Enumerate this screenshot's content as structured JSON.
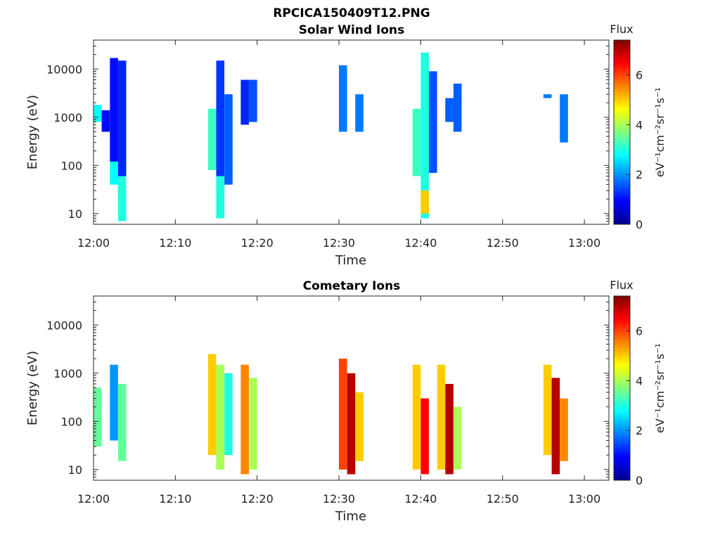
{
  "figure": {
    "filename": "RPCICA150409T12.PNG"
  },
  "colors": {
    "colormap": [
      "#00008f",
      "#0000ff",
      "#0080ff",
      "#00ffff",
      "#80ff80",
      "#ffff00",
      "#ff8000",
      "#ff0000",
      "#800000"
    ]
  },
  "chart_data": [
    {
      "type": "heatmap",
      "title": "Solar Wind Ions",
      "xlabel": "Time",
      "ylabel": "Energy (eV)",
      "xlim_minutes_after_12": [
        0,
        63
      ],
      "x_ticks": [
        "12:00",
        "12:10",
        "12:20",
        "12:30",
        "12:40",
        "12:50",
        "13:00"
      ],
      "y_scale": "log",
      "ylim": [
        6,
        40000
      ],
      "y_ticks": [
        "10",
        "100",
        "1000",
        "10000"
      ],
      "colorbar": {
        "title": "Flux",
        "label": "eV⁻¹cm⁻²sr⁻¹s⁻¹",
        "range": [
          0,
          7.4
        ],
        "ticks": [
          "0",
          "2",
          "4",
          "6"
        ]
      },
      "cells": [
        {
          "time": "12:00",
          "emin": 800,
          "emax": 1800,
          "flux": 2.8
        },
        {
          "time": "12:01",
          "emin": 500,
          "emax": 1400,
          "flux": 1.0
        },
        {
          "time": "12:02",
          "emin": 120,
          "emax": 17000,
          "flux": 1.0
        },
        {
          "time": "12:02",
          "emin": 40,
          "emax": 120,
          "flux": 2.8
        },
        {
          "time": "12:03",
          "emin": 20,
          "emax": 15000,
          "flux": 1.2
        },
        {
          "time": "12:03",
          "emin": 7,
          "emax": 60,
          "flux": 3.0
        },
        {
          "time": "12:14",
          "emin": 80,
          "emax": 1500,
          "flux": 3.2
        },
        {
          "time": "12:15",
          "emin": 30,
          "emax": 15000,
          "flux": 1.3
        },
        {
          "time": "12:15",
          "emin": 8,
          "emax": 60,
          "flux": 3.0
        },
        {
          "time": "12:16",
          "emin": 40,
          "emax": 3000,
          "flux": 1.6
        },
        {
          "time": "12:18",
          "emin": 700,
          "emax": 6000,
          "flux": 1.2
        },
        {
          "time": "12:19",
          "emin": 800,
          "emax": 6000,
          "flux": 1.5
        },
        {
          "time": "12:30",
          "emin": 500,
          "emax": 12000,
          "flux": 1.8
        },
        {
          "time": "12:32",
          "emin": 500,
          "emax": 3000,
          "flux": 1.8
        },
        {
          "time": "12:39",
          "emin": 60,
          "emax": 1500,
          "flux": 3.2
        },
        {
          "time": "12:40",
          "emin": 8,
          "emax": 22000,
          "flux": 3.0
        },
        {
          "time": "12:40",
          "emin": 10,
          "emax": 30,
          "flux": 5.0
        },
        {
          "time": "12:41",
          "emin": 70,
          "emax": 9000,
          "flux": 1.5
        },
        {
          "time": "12:43",
          "emin": 800,
          "emax": 2500,
          "flux": 1.6
        },
        {
          "time": "12:44",
          "emin": 500,
          "emax": 5000,
          "flux": 1.6
        },
        {
          "time": "12:55",
          "emin": 2500,
          "emax": 3000,
          "flux": 1.8
        },
        {
          "time": "12:57",
          "emin": 300,
          "emax": 3000,
          "flux": 1.8
        }
      ]
    },
    {
      "type": "heatmap",
      "title": "Cometary Ions",
      "xlabel": "Time",
      "ylabel": "Energy (eV)",
      "xlim_minutes_after_12": [
        0,
        63
      ],
      "x_ticks": [
        "12:00",
        "12:10",
        "12:20",
        "12:30",
        "12:40",
        "12:50",
        "13:00"
      ],
      "y_scale": "log",
      "ylim": [
        6,
        40000
      ],
      "y_ticks": [
        "10",
        "100",
        "1000",
        "10000"
      ],
      "colorbar": {
        "title": "Flux",
        "label": "eV⁻¹cm⁻²sr⁻¹s⁻¹",
        "range": [
          0,
          7.4
        ],
        "ticks": [
          "0",
          "2",
          "4",
          "6"
        ]
      },
      "cells": [
        {
          "time": "12:00",
          "emin": 30,
          "emax": 500,
          "flux": 3.5
        },
        {
          "time": "12:02",
          "emin": 40,
          "emax": 1500,
          "flux": 2.0
        },
        {
          "time": "12:03",
          "emin": 15,
          "emax": 600,
          "flux": 3.5
        },
        {
          "time": "12:14",
          "emin": 20,
          "emax": 2500,
          "flux": 5.0
        },
        {
          "time": "12:15",
          "emin": 10,
          "emax": 1500,
          "flux": 4.0
        },
        {
          "time": "12:16",
          "emin": 20,
          "emax": 1000,
          "flux": 3.0
        },
        {
          "time": "12:18",
          "emin": 8,
          "emax": 1500,
          "flux": 5.5
        },
        {
          "time": "12:19",
          "emin": 10,
          "emax": 800,
          "flux": 4.0
        },
        {
          "time": "12:30",
          "emin": 10,
          "emax": 2000,
          "flux": 6.0
        },
        {
          "time": "12:31",
          "emin": 8,
          "emax": 1000,
          "flux": 7.0
        },
        {
          "time": "12:32",
          "emin": 15,
          "emax": 400,
          "flux": 5.0
        },
        {
          "time": "12:39",
          "emin": 10,
          "emax": 1500,
          "flux": 5.0
        },
        {
          "time": "12:40",
          "emin": 8,
          "emax": 300,
          "flux": 6.5
        },
        {
          "time": "12:42",
          "emin": 10,
          "emax": 1500,
          "flux": 5.0
        },
        {
          "time": "12:43",
          "emin": 8,
          "emax": 600,
          "flux": 7.0
        },
        {
          "time": "12:44",
          "emin": 10,
          "emax": 200,
          "flux": 4.0
        },
        {
          "time": "12:55",
          "emin": 20,
          "emax": 1500,
          "flux": 5.0
        },
        {
          "time": "12:56",
          "emin": 8,
          "emax": 800,
          "flux": 7.0
        },
        {
          "time": "12:57",
          "emin": 15,
          "emax": 300,
          "flux": 5.5
        }
      ]
    }
  ]
}
